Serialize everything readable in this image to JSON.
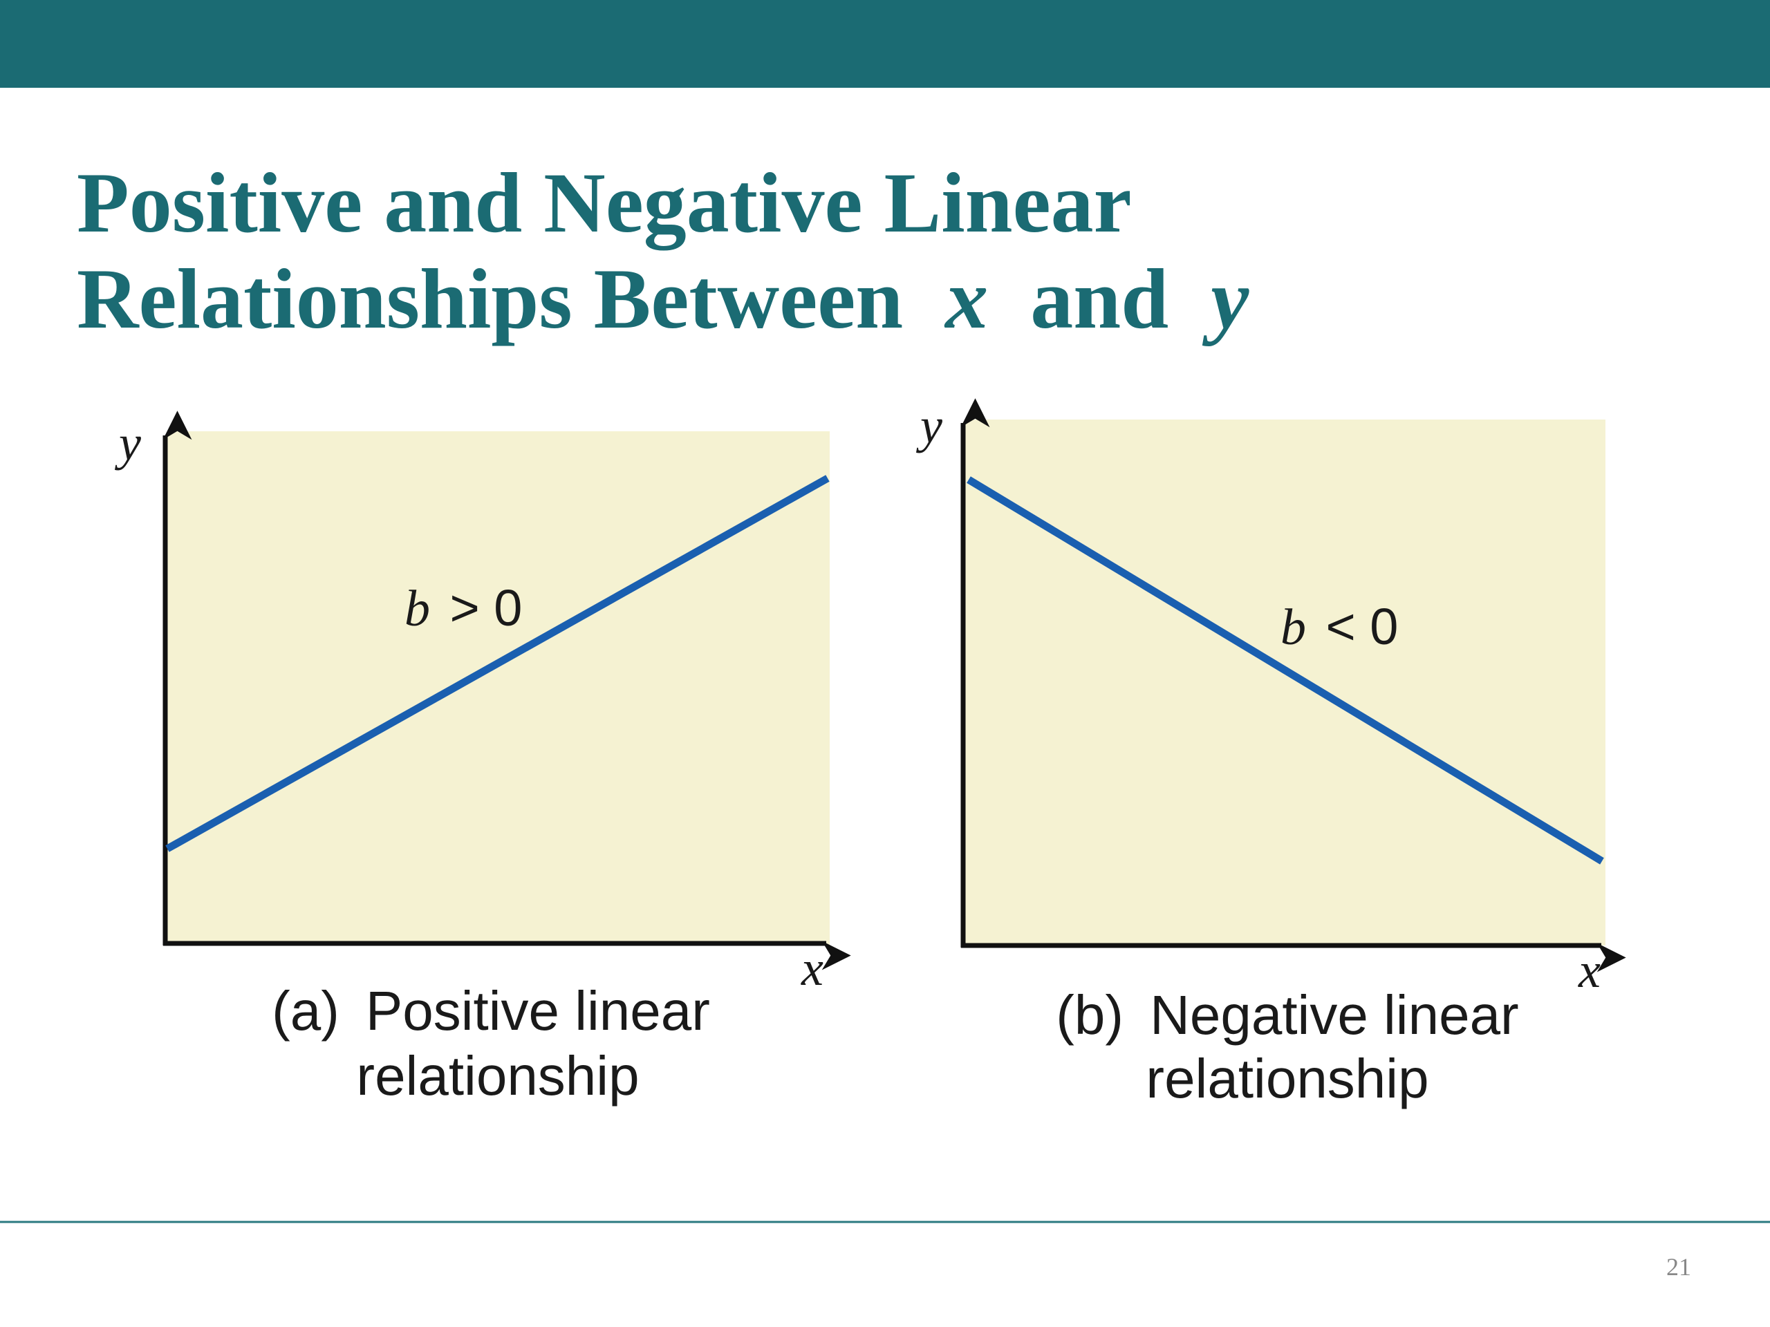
{
  "header": {
    "title_line1": "Positive and Negative Linear",
    "title_line2": [
      "Relationships Between",
      "x",
      "and",
      "y"
    ]
  },
  "panels": [
    {
      "y_label": "y",
      "x_label": "x",
      "slope_symbol": "b",
      "relation": "> 0",
      "caption_letter": "(a)",
      "caption_line1": "Positive linear",
      "caption_line2": "relationship"
    },
    {
      "y_label": "y",
      "x_label": "x",
      "slope_symbol": "b",
      "relation": "< 0",
      "caption_letter": "(b)",
      "caption_line1": "Negative linear",
      "caption_line2": "relationship"
    }
  ],
  "footer": {
    "page_number": "21"
  }
}
